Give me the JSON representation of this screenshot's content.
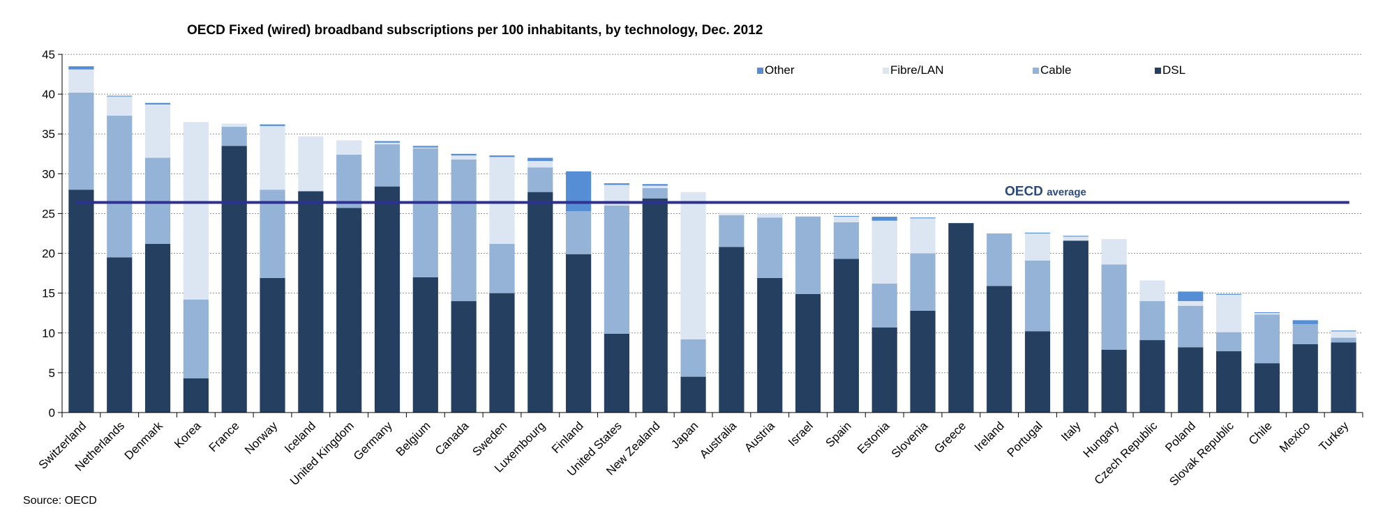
{
  "chart_data": {
    "type": "bar",
    "stacked": true,
    "title": "OECD Fixed (wired) broadband subscriptions per 100 inhabitants, by technology, Dec. 2012",
    "source": "Source: OECD",
    "ylim": [
      0,
      45
    ],
    "yticks": [
      0,
      5,
      10,
      15,
      20,
      25,
      30,
      35,
      40,
      45
    ],
    "grid": true,
    "legend_position": "top",
    "categories": [
      "Switzerland",
      "Netherlands",
      "Denmark",
      "Korea",
      "France",
      "Norway",
      "Iceland",
      "United Kingdom",
      "Germany",
      "Belgium",
      "Canada",
      "Sweden",
      "Luxembourg",
      "Finland",
      "United States",
      "New Zealand",
      "Japan",
      "Australia",
      "Austria",
      "Israel",
      "Spain",
      "Estonia",
      "Slovenia",
      "Greece",
      "Ireland",
      "Portugal",
      "Italy",
      "Hungary",
      "Czech Republic",
      "Poland",
      "Slovak Republic",
      "Chile",
      "Mexico",
      "Turkey"
    ],
    "series": [
      {
        "name": "DSL",
        "color": "#243f60",
        "values": [
          28.0,
          19.5,
          21.2,
          4.3,
          33.5,
          16.9,
          27.8,
          25.7,
          28.4,
          17.0,
          14.0,
          15.0,
          27.7,
          19.9,
          9.9,
          26.9,
          4.5,
          20.8,
          16.9,
          14.9,
          19.3,
          10.7,
          12.8,
          23.8,
          15.9,
          10.2,
          21.6,
          7.9,
          9.1,
          8.2,
          7.7,
          6.2,
          8.6,
          8.8
        ]
      },
      {
        "name": "Cable",
        "color": "#95b3d7",
        "values": [
          12.2,
          17.8,
          10.8,
          9.9,
          2.4,
          11.1,
          0.0,
          6.7,
          5.3,
          16.2,
          17.8,
          6.2,
          3.1,
          5.4,
          16.1,
          1.3,
          4.7,
          4.0,
          7.6,
          9.7,
          4.6,
          5.5,
          7.2,
          0.0,
          6.6,
          8.9,
          0.0,
          10.7,
          4.9,
          5.2,
          2.4,
          6.1,
          2.5,
          0.6
        ]
      },
      {
        "name": "Fibre/LAN",
        "color": "#dce6f2",
        "values": [
          2.9,
          2.4,
          6.7,
          22.3,
          0.4,
          8.0,
          6.9,
          1.8,
          0.2,
          0.1,
          0.5,
          10.9,
          0.8,
          0.0,
          2.6,
          0.3,
          18.5,
          0.3,
          0.5,
          0.1,
          0.7,
          7.9,
          4.4,
          0.0,
          0.0,
          3.4,
          0.5,
          3.2,
          2.6,
          0.6,
          4.7,
          0.2,
          0.0,
          0.8
        ]
      },
      {
        "name": "Other",
        "color": "#558ed5",
        "values": [
          0.4,
          0.1,
          0.2,
          0.0,
          0.0,
          0.2,
          0.0,
          0.0,
          0.2,
          0.2,
          0.2,
          0.2,
          0.4,
          5.0,
          0.2,
          0.2,
          0.0,
          0.0,
          0.0,
          0.0,
          0.1,
          0.5,
          0.1,
          0.0,
          0.0,
          0.1,
          0.1,
          0.0,
          0.0,
          1.2,
          0.1,
          0.1,
          0.5,
          0.1
        ]
      }
    ],
    "legend_order": [
      "Other",
      "Fibre/LAN",
      "Cable",
      "DSL"
    ],
    "average_line": {
      "value": 26.4,
      "color": "#2e3192",
      "label_main": "OECD",
      "label_sub": "average"
    }
  }
}
